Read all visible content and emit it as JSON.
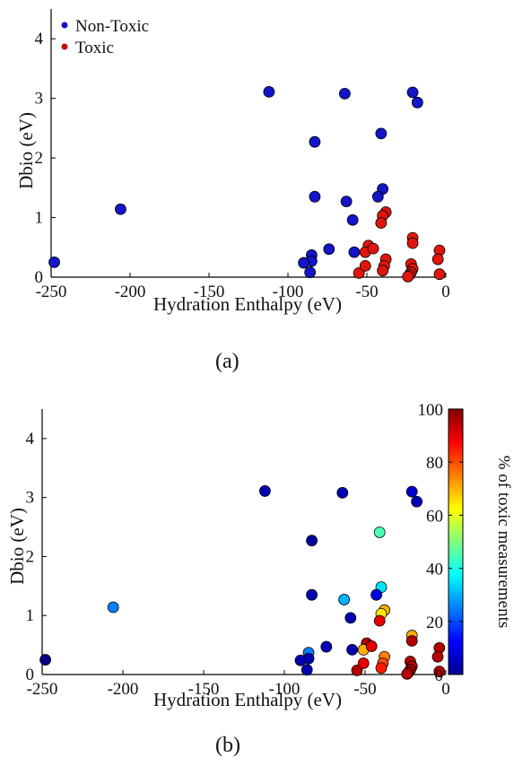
{
  "figure": {
    "caption_a": "(a)",
    "caption_b": "(b)"
  },
  "chart_data": [
    {
      "type": "scatter",
      "panel": "a",
      "xlabel": "Hydration Enthalpy (eV)",
      "ylabel": "Dbio (eV)",
      "xlim": [
        -250,
        0
      ],
      "ylim": [
        0,
        4.5
      ],
      "x_ticks": [
        -250,
        -200,
        -150,
        -100,
        -50,
        0
      ],
      "y_ticks": [
        0,
        1,
        2,
        3,
        4
      ],
      "grid": false,
      "legend": "top-left",
      "series": [
        {
          "name": "Non-Toxic",
          "color": "#1414c8",
          "x": [
            -248,
            -206,
            -112,
            -64,
            -21,
            -18,
            -41,
            -83,
            -83,
            -63,
            -59,
            -40,
            -43,
            -85,
            -85,
            -90,
            -86,
            -74,
            -58
          ],
          "y": [
            0.25,
            1.14,
            3.11,
            3.08,
            3.1,
            2.93,
            2.41,
            2.27,
            1.35,
            1.27,
            0.96,
            1.48,
            1.35,
            0.37,
            0.27,
            0.24,
            0.08,
            0.47,
            0.42
          ]
        },
        {
          "name": "Toxic",
          "color": "#e0160e",
          "x": [
            -38,
            -40,
            -41,
            -49,
            -51,
            -46,
            -55,
            -51,
            -38,
            -39,
            -40,
            -21,
            -21,
            -22,
            -21,
            -22,
            -23,
            -24,
            -4,
            -5,
            -4
          ],
          "y": [
            1.09,
            1.03,
            0.91,
            0.53,
            0.42,
            0.48,
            0.07,
            0.19,
            0.3,
            0.19,
            0.11,
            0.66,
            0.57,
            0.22,
            0.14,
            0.08,
            0.04,
            0.01,
            0.45,
            0.3,
            0.05
          ]
        }
      ]
    },
    {
      "type": "scatter",
      "panel": "b",
      "xlabel": "Hydration Enthalpy (eV)",
      "ylabel": "Dbio (eV)",
      "xlim": [
        -250,
        0
      ],
      "ylim": [
        0,
        4.5
      ],
      "x_ticks": [
        -250,
        -200,
        -150,
        -100,
        -50,
        0
      ],
      "y_ticks": [
        0,
        1,
        2,
        3,
        4
      ],
      "colorbar": {
        "label": "% of toxic measurements",
        "range": [
          0,
          100
        ],
        "ticks": [
          0,
          20,
          40,
          60,
          80,
          100
        ]
      },
      "points": [
        {
          "x": -248,
          "y": 0.25,
          "pct": 0
        },
        {
          "x": -206,
          "y": 1.14,
          "pct": 25
        },
        {
          "x": -112,
          "y": 3.11,
          "pct": 5
        },
        {
          "x": -64,
          "y": 3.08,
          "pct": 5
        },
        {
          "x": -21,
          "y": 3.1,
          "pct": 8
        },
        {
          "x": -18,
          "y": 2.93,
          "pct": 5
        },
        {
          "x": -41,
          "y": 2.41,
          "pct": 45
        },
        {
          "x": -83,
          "y": 2.27,
          "pct": 3
        },
        {
          "x": -83,
          "y": 1.35,
          "pct": 5
        },
        {
          "x": -63,
          "y": 1.27,
          "pct": 30
        },
        {
          "x": -59,
          "y": 0.96,
          "pct": 5
        },
        {
          "x": -40,
          "y": 1.48,
          "pct": 35
        },
        {
          "x": -43,
          "y": 1.35,
          "pct": 10
        },
        {
          "x": -85,
          "y": 0.37,
          "pct": 25
        },
        {
          "x": -85,
          "y": 0.27,
          "pct": 5
        },
        {
          "x": -90,
          "y": 0.24,
          "pct": 5
        },
        {
          "x": -86,
          "y": 0.08,
          "pct": 5
        },
        {
          "x": -74,
          "y": 0.47,
          "pct": 5
        },
        {
          "x": -58,
          "y": 0.42,
          "pct": 5
        },
        {
          "x": -38,
          "y": 1.09,
          "pct": 70
        },
        {
          "x": -40,
          "y": 1.03,
          "pct": 65
        },
        {
          "x": -41,
          "y": 0.91,
          "pct": 90
        },
        {
          "x": -49,
          "y": 0.53,
          "pct": 95
        },
        {
          "x": -51,
          "y": 0.42,
          "pct": 70
        },
        {
          "x": -46,
          "y": 0.48,
          "pct": 90
        },
        {
          "x": -55,
          "y": 0.07,
          "pct": 95
        },
        {
          "x": -51,
          "y": 0.19,
          "pct": 90
        },
        {
          "x": -38,
          "y": 0.3,
          "pct": 75
        },
        {
          "x": -39,
          "y": 0.19,
          "pct": 80
        },
        {
          "x": -40,
          "y": 0.11,
          "pct": 85
        },
        {
          "x": -21,
          "y": 0.66,
          "pct": 70
        },
        {
          "x": -21,
          "y": 0.57,
          "pct": 95
        },
        {
          "x": -22,
          "y": 0.22,
          "pct": 95
        },
        {
          "x": -21,
          "y": 0.14,
          "pct": 95
        },
        {
          "x": -22,
          "y": 0.08,
          "pct": 95
        },
        {
          "x": -23,
          "y": 0.04,
          "pct": 95
        },
        {
          "x": -24,
          "y": 0.01,
          "pct": 95
        },
        {
          "x": -4,
          "y": 0.45,
          "pct": 95
        },
        {
          "x": -5,
          "y": 0.3,
          "pct": 95
        },
        {
          "x": -4,
          "y": 0.05,
          "pct": 95
        }
      ]
    }
  ]
}
